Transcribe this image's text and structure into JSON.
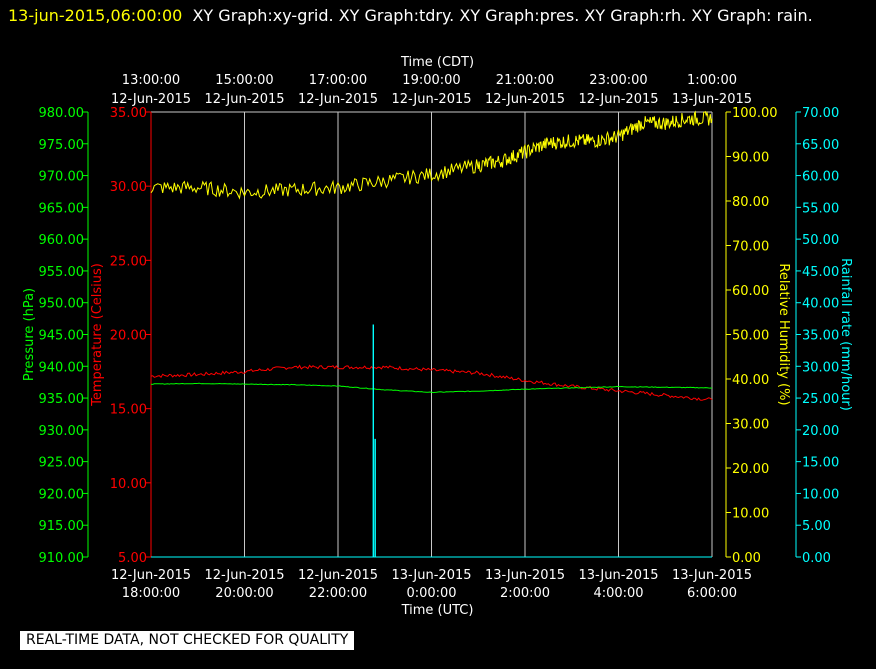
{
  "header": {
    "timestamp": "13-jun-2015,06:00:00",
    "graphs": "XY Graph:xy-grid.  XY Graph:tdry.  XY Graph:pres.  XY Graph:rh.  XY Graph: rain."
  },
  "quality_notice": "REAL-TIME DATA, NOT CHECKED FOR QUALITY",
  "chart_data": {
    "type": "line",
    "x_top_title": "Time (CDT)",
    "x_bottom_title": "Time (UTC)",
    "x_top_ticks": [
      [
        "13:00:00",
        "12-Jun-2015"
      ],
      [
        "15:00:00",
        "12-Jun-2015"
      ],
      [
        "17:00:00",
        "12-Jun-2015"
      ],
      [
        "19:00:00",
        "12-Jun-2015"
      ],
      [
        "21:00:00",
        "12-Jun-2015"
      ],
      [
        "23:00:00",
        "12-Jun-2015"
      ],
      [
        "1:00:00",
        "13-Jun-2015"
      ]
    ],
    "x_bottom_ticks": [
      [
        "12-Jun-2015",
        "18:00:00"
      ],
      [
        "12-Jun-2015",
        "20:00:00"
      ],
      [
        "12-Jun-2015",
        "22:00:00"
      ],
      [
        "13-Jun-2015",
        "0:00:00"
      ],
      [
        "13-Jun-2015",
        "2:00:00"
      ],
      [
        "13-Jun-2015",
        "4:00:00"
      ],
      [
        "13-Jun-2015",
        "6:00:00"
      ]
    ],
    "x_range_utc_hours": [
      18,
      30
    ],
    "grid": "vertical",
    "axes": {
      "pressure": {
        "label": "Pressure (hPa)",
        "range": [
          910,
          980
        ],
        "color": "#00ff00",
        "ticks": [
          "980.00",
          "975.00",
          "970.00",
          "965.00",
          "960.00",
          "955.00",
          "950.00",
          "945.00",
          "940.00",
          "935.00",
          "930.00",
          "925.00",
          "920.00",
          "915.00",
          "910.00"
        ]
      },
      "temperature": {
        "label": "Temperature (Celsius)",
        "range": [
          5,
          35
        ],
        "color": "#ff0000",
        "ticks": [
          "35.00",
          "30.00",
          "25.00",
          "20.00",
          "15.00",
          "10.00",
          "5.00"
        ]
      },
      "humidity": {
        "label": "Relative Humidity (%)",
        "range": [
          0,
          100
        ],
        "color": "#ffff00",
        "ticks": [
          "100.00",
          "90.00",
          "80.00",
          "70.00",
          "60.00",
          "50.00",
          "40.00",
          "30.00",
          "20.00",
          "10.00",
          "0.00"
        ]
      },
      "rain": {
        "label": "Rainfall rate (mm/hour)",
        "range": [
          0,
          70
        ],
        "color": "#00ffff",
        "ticks": [
          "70.00",
          "65.00",
          "60.00",
          "55.00",
          "50.00",
          "45.00",
          "40.00",
          "35.00",
          "30.00",
          "25.00",
          "20.00",
          "15.00",
          "10.00",
          "5.00",
          "0.00"
        ]
      }
    },
    "series": [
      {
        "name": "tdry",
        "axis": "temperature",
        "color": "#ff0000",
        "x": [
          18,
          19,
          20,
          21,
          22,
          23,
          24,
          25,
          26,
          27,
          28,
          29,
          30
        ],
        "y": [
          17.2,
          17.3,
          17.5,
          17.8,
          17.8,
          17.8,
          17.6,
          17.4,
          16.9,
          16.5,
          16.2,
          15.9,
          15.6
        ]
      },
      {
        "name": "pres",
        "axis": "pressure",
        "color": "#00ff00",
        "x": [
          18,
          19,
          20,
          21,
          22,
          23,
          24,
          25,
          26,
          27,
          28,
          29,
          30
        ],
        "y": [
          937.2,
          937.3,
          937.2,
          937.1,
          936.9,
          936.3,
          935.9,
          936.1,
          936.4,
          936.6,
          936.8,
          936.7,
          936.6
        ]
      },
      {
        "name": "rh",
        "axis": "humidity",
        "color": "#ffff00",
        "x": [
          18,
          19,
          20,
          21,
          22,
          23,
          24,
          25,
          25.5,
          26,
          26.5,
          27,
          27.5,
          28,
          28.5,
          29,
          29.5,
          30
        ],
        "y": [
          83,
          83,
          82,
          82.5,
          83,
          84.5,
          86,
          88,
          89,
          91,
          93,
          93.5,
          93.5,
          94.5,
          97.5,
          97.5,
          98.5,
          98.5
        ]
      },
      {
        "name": "rain",
        "axis": "rain",
        "color": "#00ffff",
        "x": [
          18,
          22.75,
          22.75,
          22.76,
          22.76,
          22.79,
          22.79,
          22.8,
          22.8,
          30
        ],
        "y": [
          0,
          0,
          36.5,
          36.5,
          0,
          0,
          18.5,
          18.5,
          0,
          0
        ]
      }
    ]
  }
}
